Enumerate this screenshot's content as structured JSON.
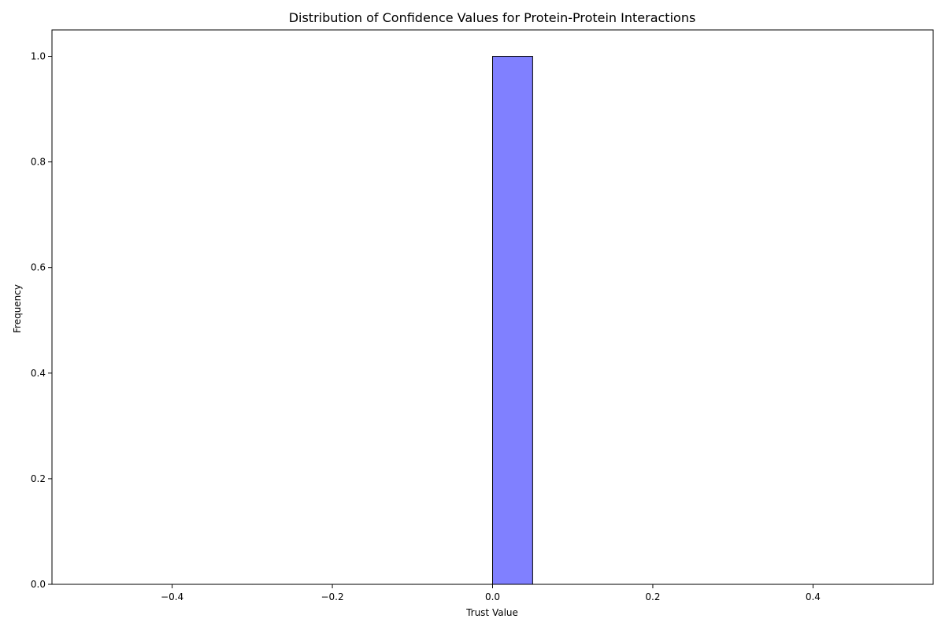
{
  "chart_data": {
    "type": "bar",
    "title": "Distribution of Confidence Values for Protein-Protein Interactions",
    "xlabel": "Trust Value",
    "ylabel": "Frequency",
    "xlim": [
      -0.55,
      0.55
    ],
    "ylim": [
      0.0,
      1.05
    ],
    "xticks": [
      -0.4,
      -0.2,
      0.0,
      0.2,
      0.4
    ],
    "xtick_labels": [
      "−0.4",
      "−0.2",
      "0.0",
      "0.2",
      "0.4"
    ],
    "yticks": [
      0.0,
      0.2,
      0.4,
      0.6,
      0.8,
      1.0
    ],
    "ytick_labels": [
      "0.0",
      "0.2",
      "0.4",
      "0.6",
      "0.8",
      "1.0"
    ],
    "grid": false,
    "bins": {
      "edges": [
        -0.5,
        -0.45,
        -0.4,
        -0.35,
        -0.3,
        -0.25,
        -0.2,
        -0.15,
        -0.1,
        -0.05,
        0.0,
        0.05,
        0.1,
        0.15,
        0.2,
        0.25,
        0.3,
        0.35,
        0.4,
        0.45,
        0.5
      ],
      "counts": [
        0,
        0,
        0,
        0,
        0,
        0,
        0,
        0,
        0,
        0,
        1,
        0,
        0,
        0,
        0,
        0,
        0,
        0,
        0,
        0
      ]
    },
    "bar_color": "#8080ff",
    "bar_edge_color": "#000000"
  }
}
